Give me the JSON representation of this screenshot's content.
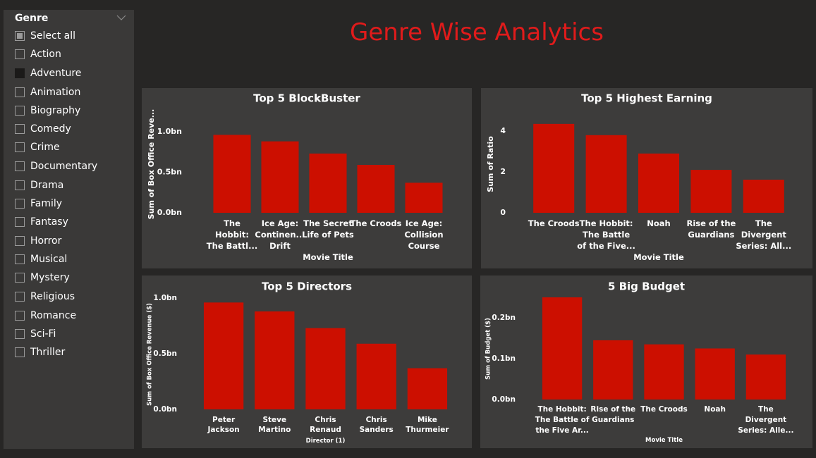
{
  "page_title": "Genre Wise Analytics",
  "slicer": {
    "header": "Genre",
    "items": [
      {
        "label": "Select all",
        "state": "partial"
      },
      {
        "label": "Action",
        "state": "off"
      },
      {
        "label": "Adventure",
        "state": "on"
      },
      {
        "label": "Animation",
        "state": "off"
      },
      {
        "label": "Biography",
        "state": "off"
      },
      {
        "label": "Comedy",
        "state": "off"
      },
      {
        "label": "Crime",
        "state": "off"
      },
      {
        "label": "Documentary",
        "state": "off"
      },
      {
        "label": "Drama",
        "state": "off"
      },
      {
        "label": "Family",
        "state": "off"
      },
      {
        "label": "Fantasy",
        "state": "off"
      },
      {
        "label": "Horror",
        "state": "off"
      },
      {
        "label": "Musical",
        "state": "off"
      },
      {
        "label": "Mystery",
        "state": "off"
      },
      {
        "label": "Religious",
        "state": "off"
      },
      {
        "label": "Romance",
        "state": "off"
      },
      {
        "label": "Sci-Fi",
        "state": "off"
      },
      {
        "label": "Thriller",
        "state": "off"
      }
    ]
  },
  "colors": {
    "bar": "#cc0f00",
    "title": "#e01b1b",
    "panel": "#3d3c3b",
    "background": "#272625"
  },
  "chart_data": [
    {
      "type": "bar",
      "title": "Top 5 BlockBuster",
      "xlabel": "Movie Title",
      "ylabel": "Sum of Box Office Reve...",
      "categories": [
        [
          "The",
          "Hobbit:",
          "The Battl..."
        ],
        [
          "Ice Age:",
          "Continen...",
          "Drift"
        ],
        [
          "The Secret",
          "Life of Pets"
        ],
        [
          "The Croods"
        ],
        [
          "Ice Age:",
          "Collision",
          "Course"
        ]
      ],
      "values": [
        0.96,
        0.88,
        0.73,
        0.59,
        0.37
      ],
      "yticks": [
        "0.0bn",
        "0.5bn",
        "1.0bn"
      ],
      "ytick_values": [
        0,
        0.5,
        1.0
      ],
      "ylim": [
        0,
        1.25
      ],
      "grid": false
    },
    {
      "type": "bar",
      "title": "Top 5 Highest Earning",
      "xlabel": "Movie Title",
      "ylabel": "Sum of Ratio",
      "categories": [
        [
          "The Croods"
        ],
        [
          "The Hobbit:",
          "The Battle",
          "of the Five..."
        ],
        [
          "Noah"
        ],
        [
          "Rise of the",
          "Guardians"
        ],
        [
          "The",
          "Divergent",
          "Series: All..."
        ]
      ],
      "values": [
        4.35,
        3.8,
        2.9,
        2.1,
        1.62
      ],
      "yticks": [
        "0",
        "2",
        "4"
      ],
      "ytick_values": [
        0,
        2,
        4
      ],
      "ylim": [
        0,
        5
      ],
      "grid": false
    },
    {
      "type": "bar",
      "title": "Top 5 Directors",
      "xlabel": "Director (1)",
      "ylabel": "Sum of Box Office Revenue ($)",
      "categories": [
        [
          "Peter",
          "Jackson"
        ],
        [
          "Steve",
          "Martino"
        ],
        [
          "Chris",
          "Renaud"
        ],
        [
          "Chris",
          "Sanders"
        ],
        [
          "Mike",
          "Thurmeier"
        ]
      ],
      "values": [
        0.96,
        0.88,
        0.73,
        0.59,
        0.37
      ],
      "yticks": [
        "0.0bn",
        "0.5bn",
        "1.0bn"
      ],
      "ytick_values": [
        0,
        0.5,
        1.0
      ],
      "ylim": [
        0,
        1.0
      ],
      "grid": false
    },
    {
      "type": "bar",
      "title": "5 Big Budget",
      "xlabel": "Movie Title",
      "ylabel": "Sum of Budget ($)",
      "categories": [
        [
          "The Hobbit:",
          "The Battle of",
          "the Five Ar..."
        ],
        [
          "Rise of the",
          "Guardians"
        ],
        [
          "The Croods"
        ],
        [
          "Noah"
        ],
        [
          "The",
          "Divergent",
          "Series: Alle..."
        ]
      ],
      "values": [
        0.25,
        0.145,
        0.135,
        0.125,
        0.11
      ],
      "yticks": [
        "0.0bn",
        "0.1bn",
        "0.2bn"
      ],
      "ytick_values": [
        0,
        0.1,
        0.2
      ],
      "ylim": [
        0,
        0.25
      ],
      "grid": false
    }
  ]
}
